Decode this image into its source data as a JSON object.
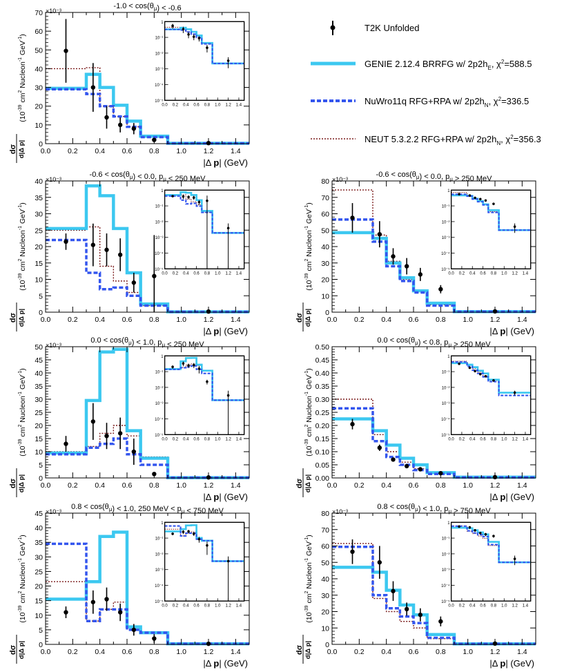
{
  "legend": {
    "entries": [
      {
        "key": "data",
        "label": "T2K Unfolded"
      },
      {
        "key": "genie",
        "label": "GENIE 2.12.4 BRRFG w/ 2p2h",
        "sub": "E",
        "chi": "=588.5"
      },
      {
        "key": "nuwro",
        "label": "NuWro11q RFG+RPA w/ 2p2h",
        "sub": "N",
        "chi": "=336.5"
      },
      {
        "key": "neut",
        "label": "NEUT 5.3.2.2 RFG+RPA w/ 2p2h",
        "sub": "N",
        "chi": "=356.3"
      }
    ]
  },
  "colors": {
    "genie": "#3cc8f0",
    "nuwro": "#3355ee",
    "neut": "#7a1a1a",
    "data": "#000000"
  },
  "chart_data": [
    {
      "type": "step",
      "title": "-1.0 < cos(θ_μ) < -0.6",
      "xlabel": "|Δ p| (GeV)",
      "ylabel": "dσ/d|Δp| (10^-39 cm² Nucleon^-1 GeV^-1)",
      "exponent": "×10⁻³",
      "xlim": [
        0,
        1.5
      ],
      "ylim": [
        0,
        70
      ],
      "yticks": [
        0,
        10,
        20,
        30,
        40,
        50,
        60,
        70
      ],
      "bin_edges": [
        0,
        0.3,
        0.4,
        0.5,
        0.6,
        0.7,
        0.9,
        1.5
      ],
      "series": [
        {
          "name": "GENIE",
          "key": "genie",
          "values": [
            29.5,
            37,
            30,
            20.5,
            12,
            4,
            0.2
          ]
        },
        {
          "name": "NuWro",
          "key": "nuwro",
          "values": [
            29,
            26.5,
            20,
            14.5,
            9,
            3.5,
            0.2
          ]
        },
        {
          "name": "NEUT",
          "key": "neut",
          "values": [
            40,
            40.5,
            20,
            14.5,
            9,
            3.5,
            0.2
          ]
        }
      ],
      "data": {
        "x": [
          0.15,
          0.35,
          0.45,
          0.55,
          0.65,
          0.8,
          1.2
        ],
        "y": [
          49.5,
          30,
          14,
          10,
          8,
          2,
          0.3
        ],
        "err": [
          17,
          13,
          6,
          4,
          3,
          1,
          0.2
        ]
      }
    },
    {
      "type": "step",
      "title": "-0.6 < cos(θ_μ) < 0.0, p_μ < 250 MeV",
      "xlabel": "|Δ p| (GeV)",
      "ylabel": "dσ/d|Δp| (10^-39 cm² Nucleon^-1 GeV^-1)",
      "exponent": "×10⁻³",
      "xlim": [
        0,
        1.5
      ],
      "ylim": [
        0,
        40
      ],
      "yticks": [
        0,
        5,
        10,
        15,
        20,
        25,
        30,
        35,
        40
      ],
      "bin_edges": [
        0,
        0.3,
        0.4,
        0.5,
        0.6,
        0.7,
        0.9,
        1.5
      ],
      "series": [
        {
          "name": "GENIE",
          "key": "genie",
          "values": [
            25.5,
            38.5,
            35.5,
            25.5,
            12,
            2.5,
            0.1
          ]
        },
        {
          "name": "NuWro",
          "key": "nuwro",
          "values": [
            22,
            12,
            7,
            7.5,
            5,
            2,
            0.1
          ]
        },
        {
          "name": "NEUT",
          "key": "neut",
          "values": [
            25,
            26,
            14,
            9.5,
            6,
            2,
            0.1
          ]
        }
      ],
      "data": {
        "x": [
          0.15,
          0.35,
          0.45,
          0.55,
          0.65,
          0.8,
          1.2
        ],
        "y": [
          21.5,
          20.5,
          19,
          17.5,
          9,
          11,
          0.2
        ],
        "err": [
          2.5,
          6.5,
          5,
          5,
          3,
          12.5,
          0.2
        ]
      }
    },
    {
      "type": "step",
      "title": "-0.6 < cos(θ_μ) < 0.0, p_μ > 250 MeV",
      "xlabel": "|Δ p| (GeV)",
      "ylabel": "dσ/d|Δp| (10^-39 cm² Nucleon^-1 GeV^-1)",
      "exponent": "×10⁻³",
      "xlim": [
        0,
        1.5
      ],
      "ylim": [
        0,
        80
      ],
      "yticks": [
        0,
        10,
        20,
        30,
        40,
        50,
        60,
        70,
        80
      ],
      "bin_edges": [
        0,
        0.3,
        0.4,
        0.5,
        0.6,
        0.7,
        0.9,
        1.5
      ],
      "series": [
        {
          "name": "GENIE",
          "key": "genie",
          "values": [
            48.5,
            45,
            30,
            21,
            13,
            5.5,
            0.3
          ]
        },
        {
          "name": "NuWro",
          "key": "nuwro",
          "values": [
            56.5,
            43,
            28,
            19,
            12,
            4,
            0.3
          ]
        },
        {
          "name": "NEUT",
          "key": "neut",
          "values": [
            74.5,
            47,
            31,
            20,
            12.5,
            4.5,
            0.3
          ]
        }
      ],
      "data": {
        "x": [
          0.15,
          0.35,
          0.45,
          0.55,
          0.65,
          0.8,
          1.2
        ],
        "y": [
          57.5,
          47.5,
          34,
          28,
          23,
          14,
          0.5
        ],
        "err": [
          9,
          8,
          5,
          5,
          4,
          2.5,
          0.3
        ]
      }
    },
    {
      "type": "step",
      "title": "0.0 < cos(θ_μ) < 1.0, p_μ < 250 MeV",
      "xlabel": "|Δ p| (GeV)",
      "ylabel": "dσ/d|Δp| (10^-39 cm² Nucleon^-1 GeV^-1)",
      "exponent": "×10⁻³",
      "xlim": [
        0,
        1.5
      ],
      "ylim": [
        0,
        50
      ],
      "yticks": [
        0,
        5,
        10,
        15,
        20,
        25,
        30,
        35,
        40,
        45,
        50
      ],
      "bin_edges": [
        0,
        0.3,
        0.4,
        0.5,
        0.6,
        0.7,
        0.9,
        1.5
      ],
      "series": [
        {
          "name": "GENIE",
          "key": "genie",
          "values": [
            9.5,
            29.5,
            48,
            49,
            18,
            7.5,
            0.1
          ]
        },
        {
          "name": "NuWro",
          "key": "nuwro",
          "values": [
            9,
            11.5,
            13,
            15,
            9,
            5,
            0.1
          ]
        },
        {
          "name": "NEUT",
          "key": "neut",
          "values": [
            10,
            12,
            17,
            20,
            16,
            8,
            0.1
          ]
        }
      ],
      "data": {
        "x": [
          0.15,
          0.35,
          0.45,
          0.55,
          0.65,
          0.8,
          1.2
        ],
        "y": [
          13,
          21.5,
          16,
          17,
          10,
          1.5,
          0.2
        ],
        "err": [
          3,
          7,
          5,
          6,
          5,
          0.5,
          0.2
        ]
      }
    },
    {
      "type": "step",
      "title": "0.0 < cos(θ_μ) < 0.8, p_μ > 250 MeV",
      "xlabel": "|Δ p| (GeV)",
      "ylabel": "dσ/d|Δp| (10^-39 cm² Nucleon^-1 GeV^-1)",
      "exponent": "",
      "xlim": [
        0,
        1.5
      ],
      "ylim": [
        0,
        0.5
      ],
      "yticks": [
        0,
        0.05,
        0.1,
        0.15,
        0.2,
        0.25,
        0.3,
        0.35,
        0.4,
        0.45,
        0.5
      ],
      "bin_edges": [
        0,
        0.3,
        0.4,
        0.5,
        0.6,
        0.7,
        0.9,
        1.5
      ],
      "series": [
        {
          "name": "GENIE",
          "key": "genie",
          "values": [
            0.225,
            0.18,
            0.125,
            0.075,
            0.05,
            0.02,
            0.003
          ]
        },
        {
          "name": "NuWro",
          "key": "nuwro",
          "values": [
            0.265,
            0.14,
            0.08,
            0.05,
            0.03,
            0.015,
            0.002
          ]
        },
        {
          "name": "NEUT",
          "key": "neut",
          "values": [
            0.3,
            0.165,
            0.1,
            0.06,
            0.035,
            0.018,
            0.003
          ]
        }
      ],
      "data": {
        "x": [
          0.15,
          0.35,
          0.45,
          0.55,
          0.65,
          0.8,
          1.2
        ],
        "y": [
          0.205,
          0.115,
          0.07,
          0.045,
          0.033,
          0.018,
          0.003
        ],
        "err": [
          0.02,
          0.012,
          0.008,
          0.006,
          0.005,
          0.003,
          0.001
        ]
      }
    },
    {
      "type": "step",
      "title": "0.8 < cos(θ_μ) < 1.0, 250 MeV < p_μ < 750 MeV",
      "xlabel": "|Δ p| (GeV)",
      "ylabel": "dσ/d|Δp| (10^-39 cm² Nucleon^-1 GeV^-1)",
      "exponent": "×10⁻³",
      "xlim": [
        0,
        1.5
      ],
      "ylim": [
        0,
        45
      ],
      "yticks": [
        0,
        5,
        10,
        15,
        20,
        25,
        30,
        35,
        40,
        45
      ],
      "bin_edges": [
        0,
        0.3,
        0.4,
        0.5,
        0.6,
        0.7,
        0.9,
        1.5
      ],
      "series": [
        {
          "name": "GENIE",
          "key": "genie",
          "values": [
            15.5,
            21.5,
            37,
            38.5,
            6,
            4,
            0.2
          ]
        },
        {
          "name": "NuWro",
          "key": "nuwro",
          "values": [
            34.5,
            8,
            12,
            12,
            5,
            4,
            0.2
          ]
        },
        {
          "name": "NEUT",
          "key": "neut",
          "values": [
            21.5,
            8,
            12,
            14.5,
            6,
            4,
            0.2
          ]
        }
      ],
      "data": {
        "x": [
          0.15,
          0.35,
          0.45,
          0.55,
          0.65,
          0.8,
          1.2
        ],
        "y": [
          11,
          14.5,
          15.5,
          11,
          5,
          2,
          0.2
        ],
        "err": [
          2,
          4,
          4,
          3,
          2,
          1.5,
          0.2
        ]
      }
    },
    {
      "type": "step",
      "title": "0.8 < cos(θ_μ) < 1.0, p_μ > 750 MeV",
      "xlabel": "|Δ p| (GeV)",
      "ylabel": "dσ/d|Δp| (10^-39 cm² Nucleon^-1 GeV^-1)",
      "exponent": "×10⁻³",
      "xlim": [
        0,
        1.5
      ],
      "ylim": [
        0,
        80
      ],
      "yticks": [
        0,
        10,
        20,
        30,
        40,
        50,
        60,
        70,
        80
      ],
      "bin_edges": [
        0,
        0.3,
        0.4,
        0.5,
        0.6,
        0.7,
        0.9,
        1.5
      ],
      "series": [
        {
          "name": "GENIE",
          "key": "genie",
          "values": [
            47,
            44,
            33,
            24,
            18,
            6,
            0.3
          ]
        },
        {
          "name": "NuWro",
          "key": "nuwro",
          "values": [
            59.5,
            30,
            22,
            17,
            13,
            4,
            0.3
          ]
        },
        {
          "name": "NEUT",
          "key": "neut",
          "values": [
            61.5,
            28,
            20,
            14,
            10,
            3.5,
            0.3
          ]
        }
      ],
      "data": {
        "x": [
          0.15,
          0.35,
          0.45,
          0.55,
          0.65,
          0.8,
          1.2
        ],
        "y": [
          56.5,
          50,
          32.5,
          21.5,
          18,
          14,
          0.5
        ],
        "err": [
          7.5,
          10,
          6,
          4,
          4,
          3,
          0.3
        ]
      }
    }
  ]
}
